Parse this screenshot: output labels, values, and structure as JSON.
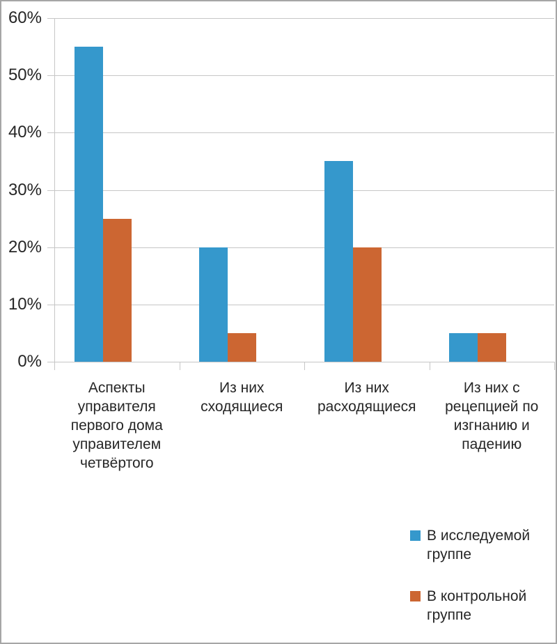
{
  "chart_data": {
    "type": "bar",
    "title": "",
    "categories": [
      "Аспекты управителя первого дома управителем четвёртого",
      "Из них сходящиеся",
      "Из них расходящиеся",
      "Из них с рецепцией по изгнанию и падению"
    ],
    "series": [
      {
        "name": "В исследуемой группе",
        "color": "#3598CC",
        "values": [
          55,
          20,
          35,
          5
        ]
      },
      {
        "name": "В контрольной группе",
        "color": "#CC6632",
        "values": [
          25,
          5,
          20,
          5
        ]
      }
    ],
    "xlabel": "",
    "ylabel": "",
    "ylim": [
      0,
      60
    ],
    "y_tick_values": [
      0,
      10,
      20,
      30,
      40,
      50,
      60
    ],
    "y_tick_labels": [
      "0%",
      "10%",
      "20%",
      "30%",
      "40%",
      "50%",
      "60%"
    ],
    "grid": true,
    "legend_position": "bottom-right"
  }
}
